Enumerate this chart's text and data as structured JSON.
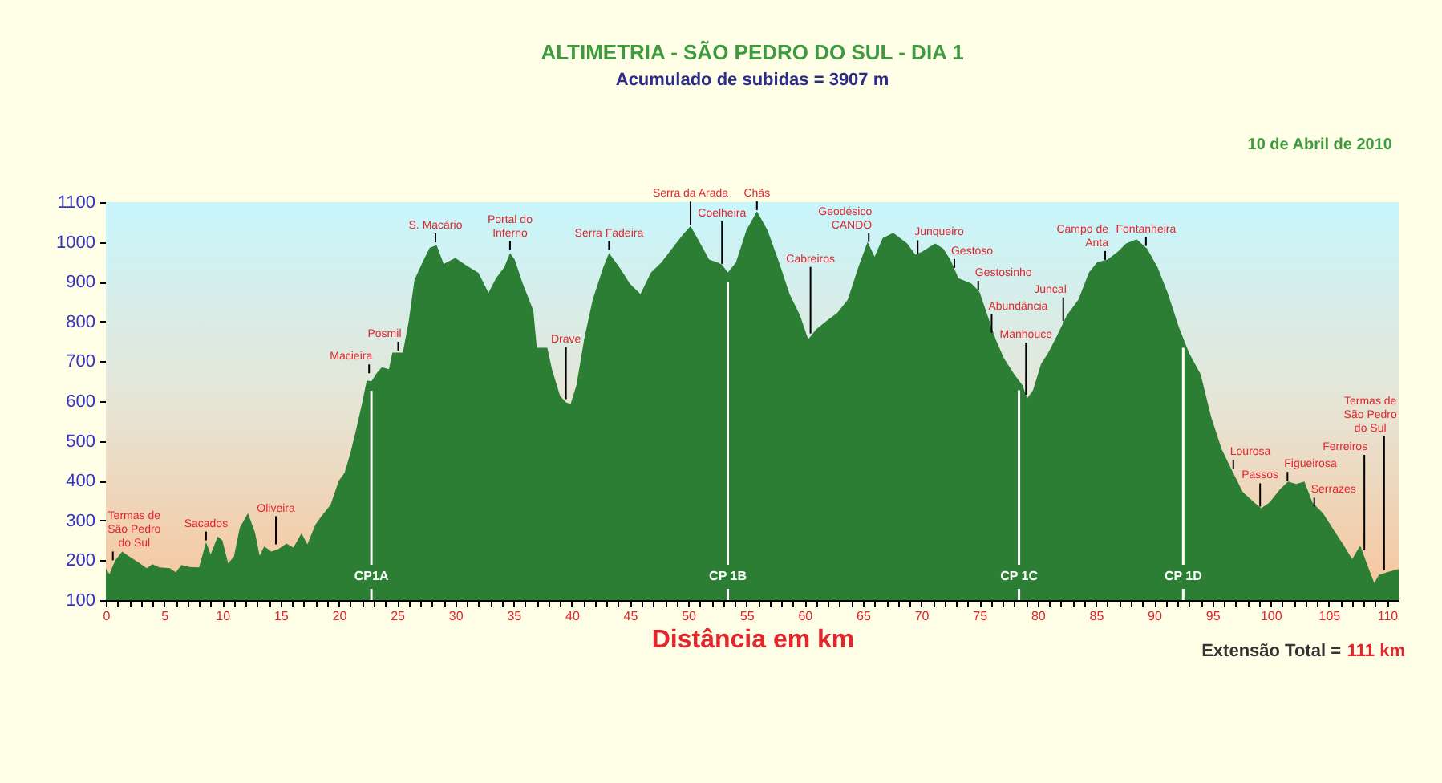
{
  "chart_data": {
    "type": "area",
    "title": "ALTIMETRIA - SÃO PEDRO DO SUL - DIA 1",
    "subtitle": "Acumulado de subidas = 3907 m",
    "xlabel": "Distância em km",
    "xlim": [
      0,
      111
    ],
    "ylim": [
      100,
      1100
    ],
    "xticks": [
      0,
      {
        "value": 1,
        "label": null
      },
      {
        "value": 2,
        "label": null
      },
      {
        "value": 3,
        "label": null
      },
      {
        "value": 4,
        "label": null
      },
      5,
      {
        "value": 6,
        "label": null
      },
      {
        "value": 7,
        "label": null
      },
      {
        "value": 8,
        "label": null
      },
      {
        "value": 9,
        "label": null
      },
      10,
      {
        "value": 11,
        "label": null
      },
      {
        "value": 12,
        "label": null
      },
      {
        "value": 13,
        "label": null
      },
      {
        "value": 14,
        "label": null
      },
      15,
      {
        "value": 16,
        "label": null
      },
      {
        "value": 17,
        "label": null
      },
      {
        "value": 18,
        "label": null
      },
      {
        "value": 19,
        "label": null
      },
      20,
      {
        "value": 21,
        "label": null
      },
      {
        "value": 22,
        "label": null
      },
      {
        "value": 23,
        "label": null
      },
      {
        "value": 24,
        "label": null
      },
      25,
      {
        "value": 26,
        "label": null
      },
      {
        "value": 27,
        "label": null
      },
      {
        "value": 28,
        "label": null
      },
      {
        "value": 29,
        "label": null
      },
      30,
      {
        "value": 31,
        "label": null
      },
      {
        "value": 32,
        "label": null
      },
      {
        "value": 33,
        "label": null
      },
      {
        "value": 34,
        "label": null
      },
      35,
      {
        "value": 36,
        "label": null
      },
      {
        "value": 37,
        "label": null
      },
      {
        "value": 38,
        "label": null
      },
      {
        "value": 39,
        "label": null
      },
      40,
      {
        "value": 41,
        "label": null
      },
      {
        "value": 42,
        "label": null
      },
      {
        "value": 43,
        "label": null
      },
      {
        "value": 44,
        "label": null
      },
      45,
      {
        "value": 46,
        "label": null
      },
      {
        "value": 47,
        "label": null
      },
      {
        "value": 48,
        "label": null
      },
      {
        "value": 49,
        "label": null
      },
      50,
      {
        "value": 51,
        "label": null
      },
      {
        "value": 52,
        "label": null
      },
      {
        "value": 53,
        "label": null
      },
      {
        "value": 54,
        "label": null
      },
      55,
      {
        "value": 56,
        "label": null
      },
      {
        "value": 57,
        "label": null
      },
      {
        "value": 58,
        "label": null
      },
      {
        "value": 59,
        "label": null
      },
      60,
      {
        "value": 61,
        "label": null
      },
      {
        "value": 62,
        "label": null
      },
      {
        "value": 63,
        "label": null
      },
      {
        "value": 64,
        "label": null
      },
      65,
      {
        "value": 66,
        "label": null
      },
      {
        "value": 67,
        "label": null
      },
      {
        "value": 68,
        "label": null
      },
      {
        "value": 69,
        "label": null
      },
      70,
      {
        "value": 71,
        "label": null
      },
      {
        "value": 72,
        "label": null
      },
      {
        "value": 73,
        "label": null
      },
      {
        "value": 74,
        "label": null
      },
      75,
      {
        "value": 76,
        "label": null
      },
      {
        "value": 77,
        "label": null
      },
      {
        "value": 78,
        "label": null
      },
      {
        "value": 79,
        "label": null
      },
      80,
      {
        "value": 81,
        "label": null
      },
      {
        "value": 82,
        "label": null
      },
      {
        "value": 83,
        "label": null
      },
      {
        "value": 84,
        "label": null
      },
      85,
      {
        "value": 86,
        "label": null
      },
      {
        "value": 87,
        "label": null
      },
      {
        "value": 88,
        "label": null
      },
      {
        "value": 89,
        "label": null
      },
      90,
      {
        "value": 91,
        "label": null
      },
      {
        "value": 92,
        "label": null
      },
      {
        "value": 93,
        "label": null
      },
      {
        "value": 94,
        "label": null
      },
      95,
      {
        "value": 96,
        "label": null
      },
      {
        "value": 97,
        "label": null
      },
      {
        "value": 98,
        "label": null
      },
      {
        "value": 99,
        "label": null
      },
      100,
      {
        "value": 101,
        "label": null
      },
      {
        "value": 102,
        "label": null
      },
      {
        "value": 103,
        "label": null
      },
      {
        "value": 104,
        "label": null
      },
      105,
      {
        "value": 106,
        "label": null
      },
      {
        "value": 107,
        "label": null
      },
      {
        "value": 108,
        "label": null
      },
      {
        "value": 109,
        "label": null
      },
      110
    ],
    "yticks": [
      100,
      200,
      300,
      400,
      500,
      600,
      700,
      800,
      900,
      1000,
      1100
    ],
    "x": [
      0,
      0.3,
      0.8,
      1.4,
      2.0,
      2.8,
      3.5,
      4.0,
      4.6,
      5.5,
      6.0,
      6.5,
      7.2,
      8.0,
      8.6,
      9.0,
      9.6,
      10.0,
      10.5,
      11.0,
      11.5,
      12.2,
      12.8,
      13.2,
      13.6,
      14.2,
      14.8,
      15.5,
      16.1,
      16.8,
      17.3,
      18.0,
      18.5,
      19.3,
      20.0,
      20.5,
      21.0,
      21.5,
      22.0,
      22.4,
      22.8,
      23.3,
      23.7,
      24.3,
      24.6,
      25.5,
      26.0,
      26.5,
      27.2,
      27.8,
      28.4,
      29.0,
      30.0,
      31.0,
      32.0,
      32.85,
      33.5,
      34.2,
      34.7,
      35.1,
      35.8,
      36.7,
      37.0,
      37.9,
      38.3,
      39.0,
      39.5,
      39.9,
      40.4,
      41.1,
      41.8,
      42.7,
      43.2,
      44.1,
      45.0,
      45.9,
      46.8,
      47.7,
      48.6,
      49.5,
      50.2,
      50.9,
      51.8,
      52.5,
      52.9,
      53.4,
      54.1,
      55.0,
      55.9,
      56.8,
      57.8,
      58.7,
      59.6,
      60.3,
      61.0,
      61.9,
      62.8,
      63.7,
      64.6,
      65.4,
      66.0,
      66.7,
      67.6,
      68.8,
      69.5,
      70.1,
      71.2,
      71.9,
      72.5,
      73.2,
      74.3,
      75.0,
      75.7,
      76.4,
      77.1,
      78.0,
      78.7,
      79.1,
      79.6,
      80.3,
      80.9,
      81.6,
      82.5,
      83.5,
      84.4,
      85.1,
      86.0,
      86.9,
      87.6,
      88.5,
      89.4,
      90.3,
      91.2,
      92.1,
      93.0,
      94.0,
      94.9,
      95.8,
      96.7,
      97.6,
      98.6,
      99.2,
      99.9,
      100.8,
      101.5,
      102.2,
      102.9,
      103.6,
      104.5,
      105.4,
      106.3,
      107.0,
      107.7,
      108.2,
      108.9,
      109.3,
      110.0,
      111.0
    ],
    "series": [
      {
        "color": "#2d7e35",
        "values": [
          180,
          165,
          200,
          222,
          210,
          195,
          180,
          190,
          182,
          180,
          170,
          188,
          183,
          182,
          245,
          215,
          260,
          250,
          192,
          210,
          282,
          318,
          270,
          212,
          235,
          222,
          228,
          242,
          232,
          268,
          240,
          290,
          310,
          340,
          400,
          420,
          470,
          530,
          595,
          652,
          650,
          672,
          685,
          680,
          722,
          722,
          800,
          905,
          950,
          985,
          992,
          945,
          960,
          940,
          922,
          872,
          909,
          936,
          972,
          956,
          895,
          828,
          734,
          734,
          680,
          613,
          597,
          593,
          640,
          761,
          855,
          936,
          972,
          936,
          895,
          869,
          923,
          949,
          983,
          1017,
          1040,
          1003,
          956,
          949,
          943,
          923,
          949,
          1030,
          1077,
          1030,
          949,
          869,
          815,
          755,
          781,
          802,
          822,
          855,
          936,
          1000,
          963,
          1010,
          1023,
          996,
          968,
          976,
          996,
          983,
          956,
          909,
          896,
          875,
          815,
          755,
          708,
          667,
          640,
          607,
          627,
          694,
          721,
          761,
          815,
          855,
          923,
          949,
          956,
          976,
          996,
          1007,
          983,
          936,
          869,
          788,
          721,
          667,
          560,
          479,
          425,
          372,
          345,
          331,
          345,
          378,
          398,
          392,
          398,
          345,
          318,
          277,
          237,
          203,
          237,
          197,
          143,
          163,
          170,
          178
        ]
      }
    ],
    "ref_lines": [
      {
        "axis": "x",
        "value": 22.8,
        "label": "CP1A",
        "color": "#ffffff"
      },
      {
        "axis": "x",
        "value": 53.4,
        "label": "CP 1B",
        "color": "#ffffff"
      },
      {
        "axis": "x",
        "value": 78.4,
        "label": "CP 1C",
        "color": "#ffffff"
      },
      {
        "axis": "x",
        "value": 92.5,
        "label": "CP 1D",
        "color": "#ffffff"
      }
    ],
    "annotations": [
      "10 de Abril de 2010",
      "Extensão Total =",
      "111 km",
      {
        "text": "Termas de\nSão Pedro\ndo Sul",
        "x": 0.6,
        "y": 200
      },
      {
        "text": "Sacados",
        "x": 8.6,
        "y": 250
      },
      {
        "text": "Oliveira",
        "x": 14.6,
        "y": 240
      },
      {
        "text": "Macieira",
        "x": 22.6,
        "y": 670
      },
      {
        "text": "Posmil",
        "x": 25.1,
        "y": 727
      },
      {
        "text": "S. Macário",
        "x": 28.3,
        "y": 999
      },
      {
        "text": "Portal do\nInferno",
        "x": 34.7,
        "y": 980
      },
      {
        "text": "Drave",
        "x": 39.5,
        "y": 605
      },
      {
        "text": "Serra Fadeira",
        "x": 43.2,
        "y": 980
      },
      {
        "text": "Serra da Arada",
        "x": 50.2,
        "y": 1043
      },
      {
        "text": "Coelheira",
        "x": 52.9,
        "y": 945
      },
      {
        "text": "Chãs",
        "x": 55.9,
        "y": 1080
      },
      {
        "text": "Cabreiros",
        "x": 60.5,
        "y": 770
      },
      {
        "text": "Geodésico\nCANDO",
        "x": 65.5,
        "y": 1000
      },
      {
        "text": "Junqueiro",
        "x": 69.7,
        "y": 970
      },
      {
        "text": "Gestoso",
        "x": 72.85,
        "y": 935
      },
      {
        "text": "Gestosinho",
        "x": 74.9,
        "y": 880
      },
      {
        "text": "Abundância",
        "x": 76.05,
        "y": 772
      },
      {
        "text": "Manhouce",
        "x": 79.0,
        "y": 616
      },
      {
        "text": "Juncal",
        "x": 82.2,
        "y": 802
      },
      {
        "text": "Campo de\nAnta",
        "x": 85.8,
        "y": 955
      },
      {
        "text": "Fontanheira",
        "x": 89.3,
        "y": 990
      },
      {
        "text": "Lourosa",
        "x": 96.8,
        "y": 430
      },
      {
        "text": "Passos",
        "x": 99.1,
        "y": 335
      },
      {
        "text": "Figueirosa",
        "x": 101.45,
        "y": 400
      },
      {
        "text": "Serrazes",
        "x": 103.75,
        "y": 335
      },
      {
        "text": "Ferreiros",
        "x": 108.05,
        "y": 225
      },
      {
        "text": "Termas de\nSão Pedro\ndo Sul",
        "x": 109.75,
        "y": 175
      }
    ]
  }
}
